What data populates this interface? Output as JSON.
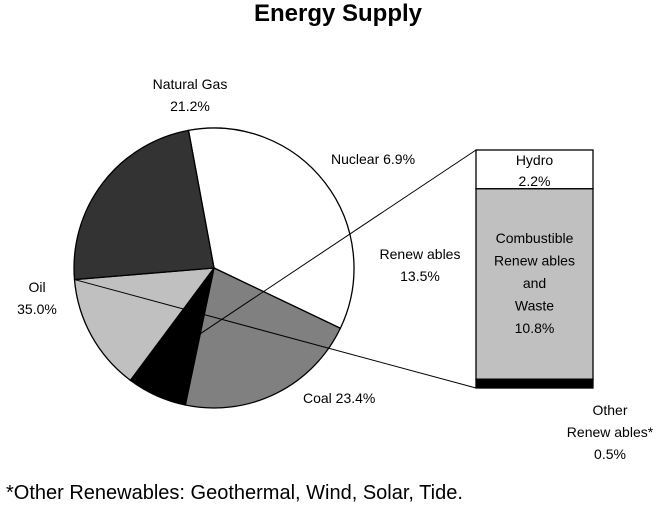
{
  "chart_data": {
    "type": "pie",
    "title": "Energy Supply",
    "footnote": "*Other Renewables: Geothermal, Wind, Solar, Tide.",
    "slices": [
      {
        "label": "Oil",
        "value": 35.0,
        "value_label": "35.0%",
        "color": "#ffffff"
      },
      {
        "label": "Natural Gas",
        "value": 21.2,
        "value_label": "21.2%",
        "color": "#808080"
      },
      {
        "label": "Nuclear",
        "value": 6.9,
        "value_label": "6.9%",
        "color": "#000000"
      },
      {
        "label": "Renew ables",
        "value": 13.5,
        "value_label": "13.5%",
        "color": "#c0c0c0"
      },
      {
        "label": "Coal",
        "value": 23.4,
        "value_label": "23.4%",
        "color": "#333333"
      }
    ],
    "breakdown": {
      "of": "Renew ables",
      "segments": [
        {
          "label": "Hydro",
          "value": 2.2,
          "value_label": "2.2%",
          "color": "#ffffff"
        },
        {
          "label_lines": [
            "Combustible",
            "Renew ables",
            "and",
            "Waste"
          ],
          "value": 10.8,
          "value_label": "10.8%",
          "color": "#c0c0c0"
        },
        {
          "label_lines": [
            "Other",
            "Renew ables*"
          ],
          "value": 0.5,
          "value_label": "0.5%",
          "color": "#000000"
        }
      ]
    }
  }
}
